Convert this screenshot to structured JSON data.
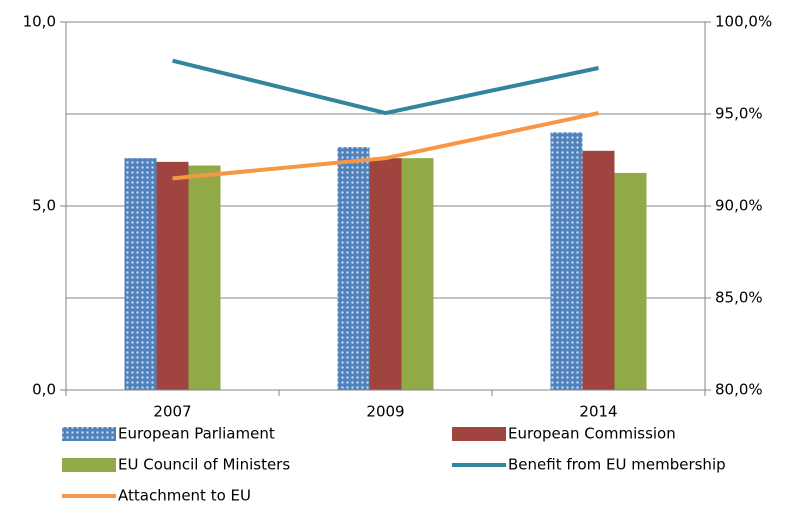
{
  "chart_data": {
    "type": "bar",
    "categories": [
      "2007",
      "2009",
      "2014"
    ],
    "series": [
      {
        "name": "European Parliament",
        "type": "bar",
        "color": "#4f81bd",
        "pattern": "dots",
        "values": [
          6.3,
          6.6,
          7.0
        ]
      },
      {
        "name": "European Commission",
        "type": "bar",
        "color": "#a0443f",
        "values": [
          6.2,
          6.3,
          6.5
        ]
      },
      {
        "name": "EU Council of Ministers",
        "type": "bar",
        "color": "#8faa46",
        "values": [
          6.1,
          6.3,
          5.9
        ]
      },
      {
        "name": "Benefit from EU membership",
        "type": "line",
        "axis": "y2",
        "color": "#31859c",
        "values": [
          97.9,
          95.05,
          97.5
        ]
      },
      {
        "name": "Attachment to EU",
        "type": "line",
        "axis": "y2",
        "color": "#f79646",
        "values": [
          91.5,
          92.6,
          95.05
        ]
      }
    ],
    "ylim": [
      0,
      10
    ],
    "yticks": [
      {
        "value": 0,
        "label": "0,0"
      },
      {
        "value": 5,
        "label": "5,0"
      },
      {
        "value": 10,
        "label": "10,0"
      }
    ],
    "y2lim": [
      80,
      100
    ],
    "y2ticks": [
      {
        "value": 80,
        "label": "80,0%"
      },
      {
        "value": 85,
        "label": "85,0%"
      },
      {
        "value": 90,
        "label": "90,0%"
      },
      {
        "value": 95,
        "label": "95,0%"
      },
      {
        "value": 100,
        "label": "100,0%"
      }
    ],
    "grid": true
  }
}
